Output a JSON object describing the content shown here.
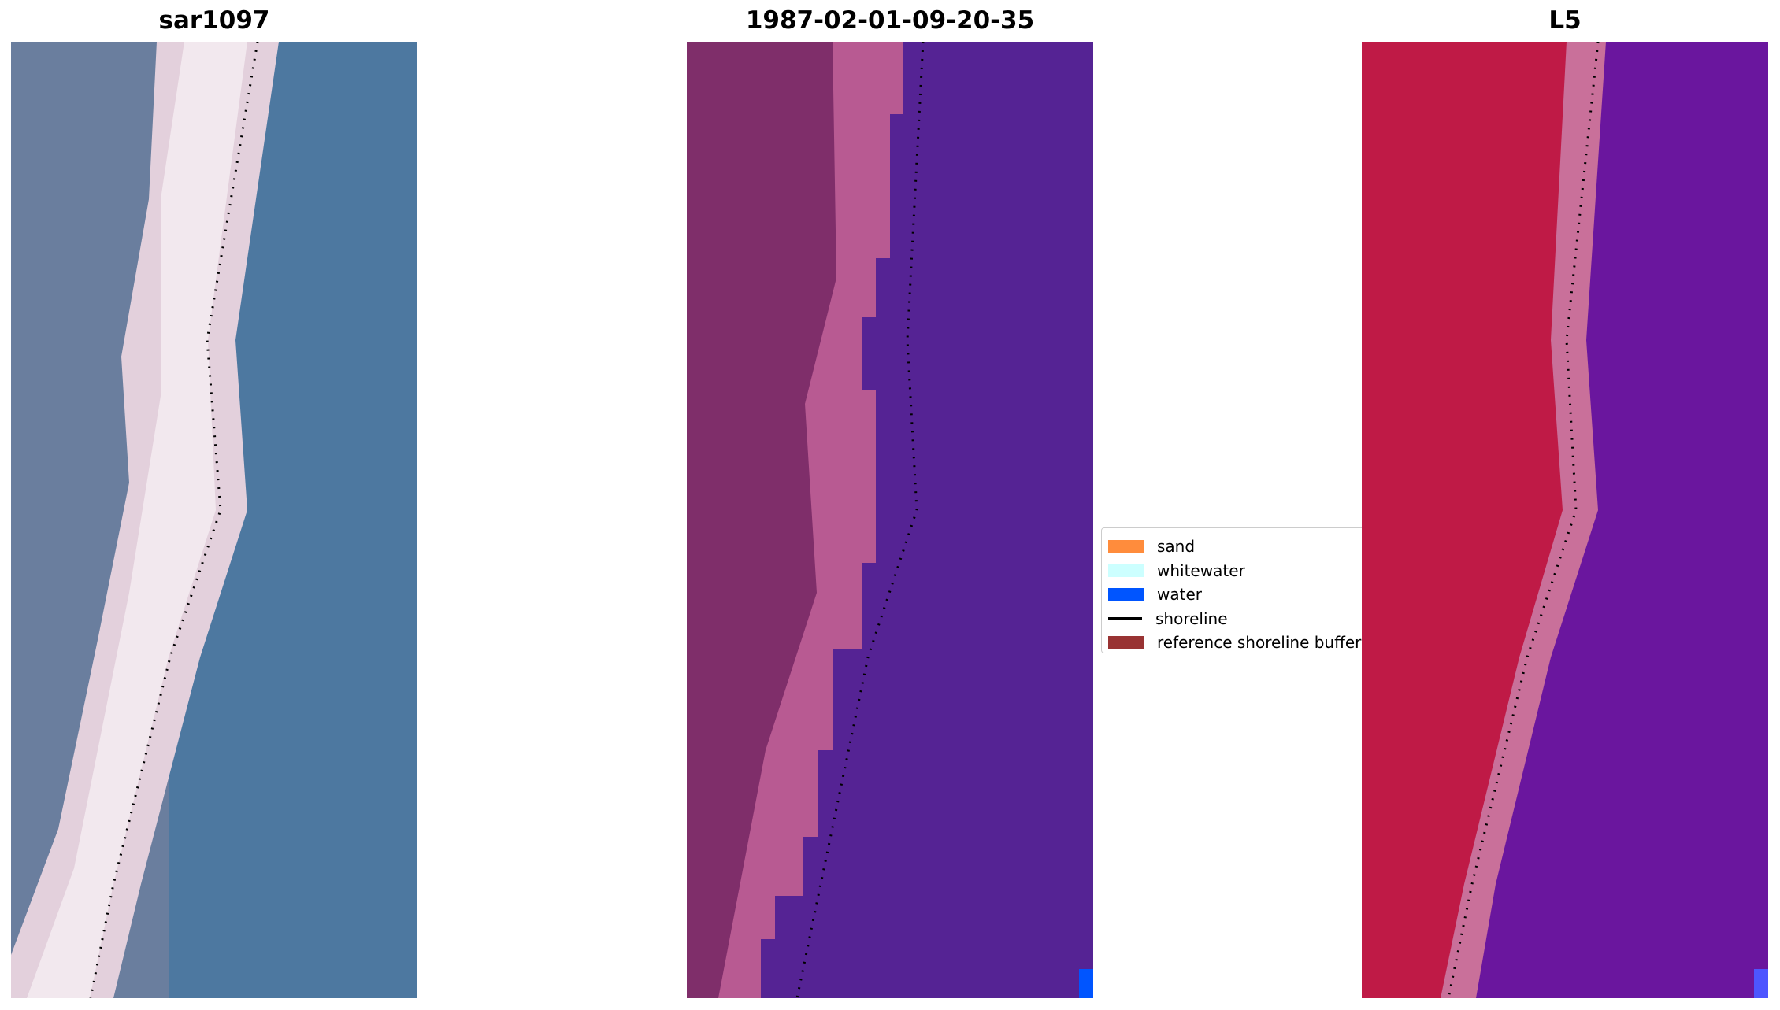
{
  "panels": [
    {
      "title": "sar1097"
    },
    {
      "title": "1987-02-01-09-20-35"
    },
    {
      "title": "L5"
    }
  ],
  "legend": [
    {
      "label": "sand",
      "color": "#ff8c3c"
    },
    {
      "label": "whitewater",
      "color": "#ccffff"
    },
    {
      "label": "water",
      "color": "#0055ff"
    },
    {
      "label": "shoreline",
      "color": "#000000"
    },
    {
      "label": "reference shoreline buffer",
      "color": "#993333"
    }
  ]
}
